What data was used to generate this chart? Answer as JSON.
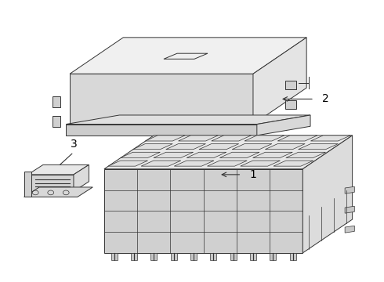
{
  "background_color": "#ffffff",
  "line_color": "#333333",
  "label_color": "#000000",
  "figsize": [
    4.9,
    3.6
  ],
  "dpi": 100
}
